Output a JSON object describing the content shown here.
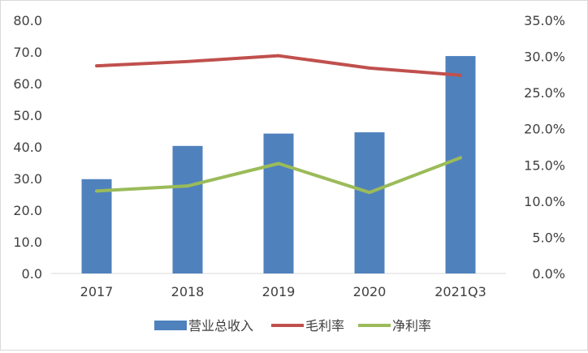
{
  "chart_data": {
    "type": "bar",
    "title": "",
    "categories": [
      "2017",
      "2018",
      "2019",
      "2020",
      "2021Q3"
    ],
    "y_left": {
      "range": [
        0,
        80
      ],
      "step": 10,
      "tick_labels": [
        "0.0",
        "10.0",
        "20.0",
        "30.0",
        "40.0",
        "50.0",
        "60.0",
        "70.0",
        "80.0"
      ]
    },
    "y_right": {
      "range": [
        0,
        0.35
      ],
      "step": 0.05,
      "tick_labels": [
        "0.0%",
        "5.0%",
        "10.0%",
        "15.0%",
        "20.0%",
        "25.0%",
        "30.0%",
        "35.0%"
      ]
    },
    "series": [
      {
        "name": "营业总收入",
        "kind": "bar",
        "axis": "left",
        "color": "#4f81bd",
        "values": [
          29.8,
          40.3,
          44.2,
          44.6,
          68.7
        ]
      },
      {
        "name": "毛利率",
        "kind": "line",
        "axis": "right",
        "color": "#c0504d",
        "values": [
          0.287,
          0.293,
          0.301,
          0.284,
          0.274
        ]
      },
      {
        "name": "净利率",
        "kind": "line",
        "axis": "right",
        "color": "#9bbb59",
        "values": [
          0.114,
          0.121,
          0.152,
          0.112,
          0.16
        ]
      }
    ],
    "grid": false,
    "legend_position": "bottom"
  }
}
